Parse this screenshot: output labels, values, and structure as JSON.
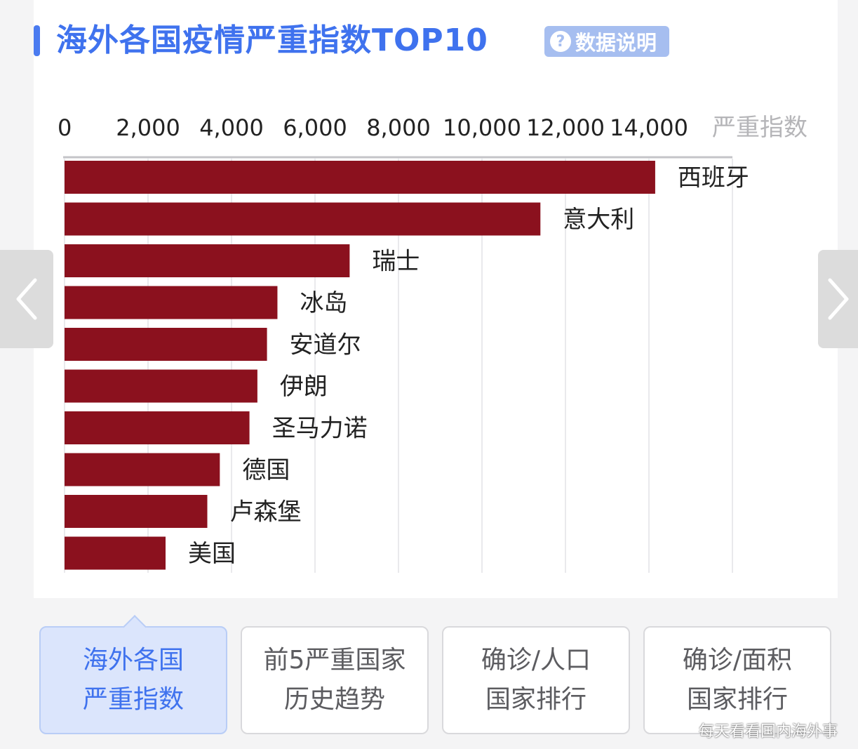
{
  "header": {
    "title": "海外各国疫情严重指数TOP10",
    "info_icon": "?",
    "info_label": "数据说明"
  },
  "colors": {
    "accent": "#3f72ee",
    "bar": "#8b111e",
    "info_button": "#a6bef0",
    "active_tab_bg": "#dbe5fc"
  },
  "nav": {
    "prev_icon": "chevron-left-icon",
    "next_icon": "chevron-right-icon"
  },
  "tabs": [
    {
      "line1": "海外各国",
      "line2": "严重指数",
      "active": true
    },
    {
      "line1": "前5严重国家",
      "line2": "历史趋势",
      "active": false
    },
    {
      "line1": "确诊/人口",
      "line2": "国家排行",
      "active": false
    },
    {
      "line1": "确诊/面积",
      "line2": "国家排行",
      "active": false
    }
  ],
  "watermark": "每天看看国内海外事",
  "chart_data": {
    "type": "bar",
    "orientation": "horizontal",
    "title": "海外各国疫情严重指数TOP10",
    "xlabel": "严重指数",
    "xlim": [
      0,
      16000
    ],
    "x_ticks": [
      "0",
      "2,000",
      "4,000",
      "6,000",
      "8,000",
      "10,000",
      "12,000",
      "14,000"
    ],
    "x_tick_values": [
      0,
      2000,
      4000,
      6000,
      8000,
      10000,
      12000,
      14000
    ],
    "categories": [
      "西班牙",
      "意大利",
      "瑞士",
      "冰岛",
      "安道尔",
      "伊朗",
      "圣马力诺",
      "德国",
      "卢森堡",
      "美国"
    ],
    "values": [
      14150,
      11400,
      6830,
      5100,
      4850,
      4620,
      4430,
      3720,
      3420,
      2420
    ],
    "axis_position": "top",
    "grid": true,
    "bar_color": "#8b111e"
  }
}
